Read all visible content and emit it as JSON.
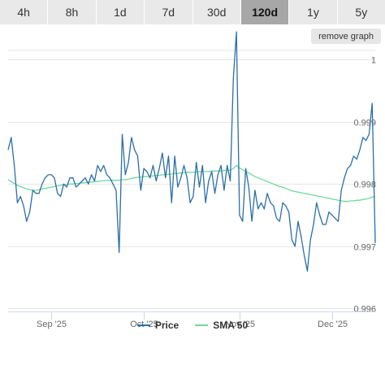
{
  "tabs": [
    {
      "label": "4h",
      "active": false
    },
    {
      "label": "8h",
      "active": false
    },
    {
      "label": "1d",
      "active": false
    },
    {
      "label": "7d",
      "active": false
    },
    {
      "label": "30d",
      "active": false
    },
    {
      "label": "120d",
      "active": true
    },
    {
      "label": "1y",
      "active": false
    },
    {
      "label": "5y",
      "active": false
    }
  ],
  "remove_graph_label": "remove graph",
  "colors": {
    "price": "#2a6fa8",
    "sma": "#6fd99a",
    "grid": "#e6e6e6"
  },
  "chart_data": {
    "type": "line",
    "title": "",
    "xlabel": "",
    "ylabel": "",
    "ylim": [
      0.99595,
      1.00015
    ],
    "y_ticks": [
      {
        "value": 0.996,
        "label": "0.996"
      },
      {
        "value": 0.997,
        "label": "0.997"
      },
      {
        "value": 0.998,
        "label": "0.998"
      },
      {
        "value": 0.999,
        "label": "0.999"
      },
      {
        "value": 1.0,
        "label": "1"
      }
    ],
    "x_ticks": [
      "Sep '25",
      "Oct '25",
      "Nov '25",
      "Dec '25"
    ],
    "x_start": "2025-08-18",
    "grid": true,
    "legend_position": "bottom",
    "series": [
      {
        "name": "Price",
        "values": [
          0.99855,
          0.99875,
          0.9983,
          0.9977,
          0.9978,
          0.99765,
          0.9974,
          0.99755,
          0.9979,
          0.99785,
          0.99785,
          0.998,
          0.9981,
          0.99815,
          0.99815,
          0.9981,
          0.99785,
          0.9978,
          0.998,
          0.99795,
          0.9981,
          0.9981,
          0.99795,
          0.998,
          0.99805,
          0.9981,
          0.998,
          0.99815,
          0.99805,
          0.9983,
          0.9982,
          0.9983,
          0.99815,
          0.9981,
          0.998,
          0.9979,
          0.9969,
          0.9988,
          0.99815,
          0.99835,
          0.99875,
          0.99855,
          0.99845,
          0.9979,
          0.99825,
          0.9982,
          0.9981,
          0.9983,
          0.99805,
          0.99825,
          0.9985,
          0.9981,
          0.99845,
          0.9977,
          0.99845,
          0.99795,
          0.9981,
          0.9983,
          0.9981,
          0.9977,
          0.9978,
          0.99835,
          0.99795,
          0.9983,
          0.9977,
          0.99805,
          0.9982,
          0.99785,
          0.99815,
          0.9983,
          0.9979,
          0.9983,
          0.99805,
          0.9997,
          1.00045,
          0.9975,
          0.9974,
          0.99825,
          0.99795,
          0.9974,
          0.9979,
          0.9976,
          0.9977,
          0.9976,
          0.99785,
          0.9977,
          0.99765,
          0.99745,
          0.9974,
          0.9977,
          0.99765,
          0.99755,
          0.9971,
          0.997,
          0.9974,
          0.99715,
          0.99685,
          0.9966,
          0.9971,
          0.99735,
          0.9977,
          0.9975,
          0.99735,
          0.99735,
          0.99755,
          0.9975,
          0.99745,
          0.9974,
          0.9979,
          0.9981,
          0.99825,
          0.9983,
          0.99845,
          0.9984,
          0.99855,
          0.99875,
          0.9987,
          0.9988,
          0.9993,
          0.99705
        ]
      },
      {
        "name": "SMA 50",
        "values": [
          0.99807,
          0.99804,
          0.99801,
          0.99798,
          0.99796,
          0.99794,
          0.99792,
          0.99791,
          0.9979,
          0.9979,
          0.99791,
          0.99792,
          0.99793,
          0.99794,
          0.99795,
          0.99796,
          0.99797,
          0.99798,
          0.99799,
          0.99799,
          0.998,
          0.998,
          0.99801,
          0.99801,
          0.99802,
          0.99802,
          0.99803,
          0.99803,
          0.99804,
          0.99804,
          0.99805,
          0.99805,
          0.99806,
          0.99806,
          0.99806,
          0.99806,
          0.99806,
          0.99807,
          0.99807,
          0.99808,
          0.99809,
          0.9981,
          0.99811,
          0.99811,
          0.99812,
          0.99812,
          0.99813,
          0.99813,
          0.99814,
          0.99814,
          0.99815,
          0.99815,
          0.99816,
          0.99816,
          0.99817,
          0.99817,
          0.99818,
          0.99818,
          0.99819,
          0.99819,
          0.99819,
          0.99819,
          0.9982,
          0.9982,
          0.9982,
          0.9982,
          0.99821,
          0.99821,
          0.99821,
          0.99821,
          0.99822,
          0.99822,
          0.99822,
          0.99825,
          0.9983,
          0.99826,
          0.99823,
          0.9982,
          0.99818,
          0.99815,
          0.99812,
          0.9981,
          0.99808,
          0.99806,
          0.99804,
          0.99802,
          0.998,
          0.99798,
          0.99796,
          0.99795,
          0.99793,
          0.99791,
          0.99789,
          0.99788,
          0.99787,
          0.99786,
          0.99785,
          0.99784,
          0.99783,
          0.99782,
          0.99781,
          0.9978,
          0.99779,
          0.99778,
          0.99777,
          0.99776,
          0.99775,
          0.99774,
          0.99773,
          0.99772,
          0.99772,
          0.99773,
          0.99773,
          0.99774,
          0.99774,
          0.99775,
          0.99776,
          0.99777,
          0.99779,
          0.9978
        ]
      }
    ]
  }
}
